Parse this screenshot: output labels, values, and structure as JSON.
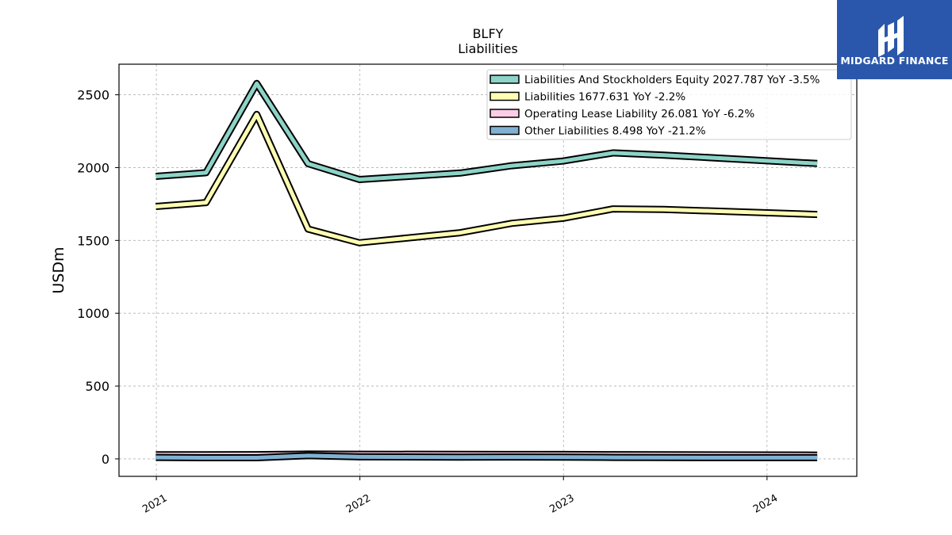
{
  "brand": {
    "name": "MIDGARD FINANCE",
    "bg_color": "#2a57ab"
  },
  "chart_data": {
    "type": "line",
    "title": "BLFY",
    "subtitle": "Liabilities",
    "xlabel": "",
    "ylabel": "USDm",
    "ylim": [
      -120,
      2710
    ],
    "xlim": [
      "2020-10-26",
      "2024-06-10"
    ],
    "yticks": [
      0,
      500,
      1000,
      1500,
      2000,
      2500
    ],
    "xticks": [
      "2021",
      "2022",
      "2023",
      "2024"
    ],
    "grid": true,
    "legend_position": "top-right",
    "x": [
      "2020-12-31",
      "2021-03-31",
      "2021-06-30",
      "2021-09-30",
      "2021-12-31",
      "2022-06-30",
      "2022-09-30",
      "2022-12-31",
      "2023-03-31",
      "2023-06-30",
      "2024-03-31"
    ],
    "series": [
      {
        "name": "Liabilities And Stockholders Equity",
        "latest": "2027.787",
        "yoy": "YoY -3.5%",
        "color": "#8dd3c7",
        "values": [
          1940,
          1965,
          2578,
          2027,
          1918,
          1963,
          2013,
          2045,
          2101,
          2086,
          2028
        ]
      },
      {
        "name": "Liabilities",
        "latest": "1677.631",
        "yoy": "YoY -2.2%",
        "color": "#ffffb3",
        "values": [
          1733,
          1760,
          2365,
          1578,
          1484,
          1553,
          1617,
          1652,
          1716,
          1713,
          1678
        ]
      },
      {
        "name": "Operating Lease Liability",
        "latest": "26.081",
        "yoy": "YoY -6.2%",
        "color": "#fccde5",
        "values": [
          28,
          28,
          29,
          33,
          32,
          31,
          30,
          30,
          29,
          28,
          26
        ]
      },
      {
        "name": "Other Liabilities",
        "latest": "8.498",
        "yoy": "YoY -21.2%",
        "color": "#80b1d3",
        "values": [
          10,
          8,
          8,
          22,
          14,
          12,
          13,
          12,
          10,
          9,
          8.5
        ]
      }
    ]
  }
}
